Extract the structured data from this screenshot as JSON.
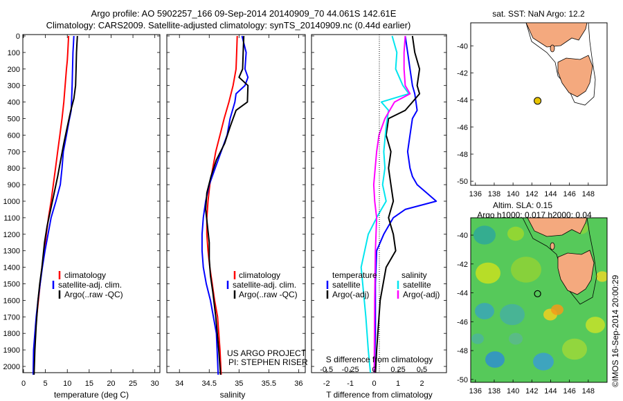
{
  "header": {
    "line1": "Argo profile: AO 5902257_166 09-Sep-2014 20140909_70 44.061S 142.61E",
    "line2": "Climatology: CARS2009. Satellite-adjusted climatology: synTS_20140909.nc (0.44d earlier)"
  },
  "colors": {
    "climatology": "#ff0000",
    "satellite": "#0000ff",
    "argo": "#000000",
    "sat_salinity": "#00e5ee",
    "argo_adj_salinity": "#ff00ff",
    "land": "#f4a97e",
    "float_marker": "#e8c400"
  },
  "credits": {
    "project": "US ARGO PROJECT",
    "pi": "PI: STEPHEN RISER",
    "timestamp": "©IMOS 16-Sep-2014 20:00:29"
  },
  "chart_data": [
    {
      "type": "line",
      "name": "temperature-profile",
      "xlabel": "temperature (deg C)",
      "ylabel": "",
      "xlim": [
        0,
        31
      ],
      "ylim": [
        2050,
        0
      ],
      "xticks": [
        0,
        5,
        10,
        15,
        20,
        25,
        30
      ],
      "yticks": [
        0,
        100,
        200,
        300,
        400,
        500,
        600,
        700,
        800,
        900,
        1000,
        1100,
        1200,
        1300,
        1400,
        1500,
        1600,
        1700,
        1800,
        1900,
        2000
      ],
      "legend": [
        "climatology",
        "satellite-adj. clim.",
        "Argo(..raw -QC)"
      ],
      "legend_position": "lower-right",
      "series": [
        {
          "name": "climatology",
          "color": "#ff0000",
          "x": [
            10.3,
            10.2,
            10.1,
            10.0,
            9.8,
            9.5,
            9.2,
            8.8,
            8.3,
            7.8,
            7.3,
            6.8,
            6.3,
            5.7,
            5.2,
            4.7,
            4.2,
            3.8,
            3.4,
            3.0,
            2.7,
            2.5,
            2.3
          ],
          "y": [
            0,
            50,
            100,
            150,
            200,
            300,
            400,
            500,
            600,
            700,
            800,
            900,
            1000,
            1100,
            1200,
            1300,
            1400,
            1500,
            1600,
            1700,
            1800,
            1900,
            2050
          ]
        },
        {
          "name": "satellite-adj. clim.",
          "color": "#0000ff",
          "x": [
            11.5,
            11.4,
            11.3,
            11.2,
            11.1,
            11.0,
            10.9,
            10.5,
            9.8,
            9.1,
            8.8,
            8.4,
            7.4,
            6.3,
            5.6,
            4.9,
            4.3,
            3.8,
            3.3,
            2.9,
            2.6,
            2.3,
            2.2
          ],
          "y": [
            0,
            50,
            100,
            200,
            300,
            380,
            450,
            500,
            600,
            700,
            800,
            900,
            1000,
            1100,
            1200,
            1300,
            1400,
            1500,
            1600,
            1700,
            1800,
            1900,
            2050
          ]
        },
        {
          "name": "Argo(..raw -QC)",
          "color": "#000000",
          "x": [
            12.3,
            12.2,
            12.1,
            12.0,
            11.9,
            11.5,
            10.8,
            10.0,
            9.2,
            8.5,
            7.8,
            7.0,
            6.2,
            5.4,
            4.8,
            4.2,
            3.7,
            3.3,
            2.9,
            2.6,
            2.4
          ],
          "y": [
            0,
            50,
            100,
            200,
            300,
            380,
            450,
            550,
            650,
            750,
            850,
            950,
            1050,
            1150,
            1250,
            1400,
            1500,
            1600,
            1750,
            1900,
            2050
          ]
        }
      ]
    },
    {
      "type": "line",
      "name": "salinity-profile",
      "xlabel": "salinity",
      "ylabel": "",
      "xlim": [
        33.8,
        36.1
      ],
      "ylim": [
        2050,
        0
      ],
      "xticks": [
        34,
        34.5,
        35,
        35.5,
        36
      ],
      "legend": [
        "climatology",
        "satellite-adj. clim.",
        "Argo(..raw -QC)"
      ],
      "legend_position": "lower-right",
      "series": [
        {
          "name": "climatology",
          "color": "#ff0000",
          "x": [
            34.97,
            34.96,
            34.95,
            34.9,
            34.83,
            34.75,
            34.68,
            34.61,
            34.56,
            34.51,
            34.48,
            34.46,
            34.46,
            34.48,
            34.51,
            34.55,
            34.59,
            34.64,
            34.68,
            34.7
          ],
          "y": [
            0,
            100,
            200,
            300,
            400,
            500,
            600,
            700,
            800,
            900,
            1000,
            1100,
            1200,
            1300,
            1400,
            1500,
            1600,
            1700,
            1900,
            2050
          ]
        },
        {
          "name": "satellite-adj. clim.",
          "color": "#0000ff",
          "x": [
            35.05,
            35.12,
            35.1,
            35.15,
            35.1,
            34.95,
            34.93,
            34.85,
            34.8,
            34.7,
            34.6,
            34.5,
            34.44,
            34.4,
            34.38,
            34.38,
            34.4,
            34.45,
            34.52,
            34.62,
            34.65
          ],
          "y": [
            0,
            100,
            200,
            250,
            300,
            350,
            400,
            500,
            600,
            700,
            800,
            900,
            1000,
            1100,
            1200,
            1300,
            1400,
            1500,
            1600,
            1800,
            2050
          ]
        },
        {
          "name": "Argo(..raw -QC)",
          "color": "#000000",
          "x": [
            35.08,
            35.07,
            35.06,
            35.0,
            35.15,
            35.14,
            34.95,
            34.85,
            34.76,
            34.62,
            34.53,
            34.46,
            34.44,
            34.47,
            34.5,
            34.5,
            34.52,
            34.56,
            34.61,
            34.66,
            34.69
          ],
          "y": [
            0,
            100,
            200,
            250,
            300,
            400,
            450,
            550,
            650,
            750,
            850,
            950,
            1050,
            1150,
            1250,
            1350,
            1450,
            1550,
            1700,
            1900,
            2050
          ]
        }
      ]
    },
    {
      "type": "line",
      "name": "difference-from-climatology",
      "xlabel": "T difference from climatology",
      "xlabel_top": "S difference from climatology",
      "ylabel": "",
      "xlim": [
        -2.6,
        3.0
      ],
      "ylim": [
        2050,
        0
      ],
      "xticks": [
        -2,
        -1,
        0,
        1,
        2
      ],
      "xticks_top": [
        -0.5,
        -0.25,
        0,
        0.25,
        0.5
      ],
      "legend_titles": [
        "temperature",
        "salinity"
      ],
      "legend": [
        "satellite",
        "Argo(-adj)",
        "satellite",
        "Argo(-adj)"
      ],
      "series": [
        {
          "name": "satellite",
          "color": "#0000ff",
          "x": [
            1.3,
            1.4,
            1.5,
            1.6,
            1.7,
            1.75,
            1.8,
            1.6,
            1.5,
            1.4,
            1.5,
            1.6,
            1.8,
            2.2,
            2.6,
            1.3,
            0.8,
            0.4,
            0.1,
            0.05,
            0.05,
            0.0
          ],
          "y": [
            0,
            100,
            200,
            300,
            350,
            400,
            450,
            500,
            600,
            700,
            800,
            850,
            900,
            950,
            1000,
            1050,
            1100,
            1200,
            1300,
            1500,
            1800,
            2050
          ]
        },
        {
          "name": "Argo(-adj)",
          "color": "#000000",
          "x": [
            1.6,
            1.7,
            1.9,
            1.8,
            1.9,
            1.6,
            1.3,
            0.6,
            0.5,
            0.7,
            0.6,
            0.7,
            0.8,
            0.7,
            0.6,
            0.7,
            0.8,
            0.9,
            0.5,
            0.25,
            0.1,
            0.05
          ],
          "y": [
            0,
            100,
            200,
            300,
            350,
            400,
            450,
            500,
            600,
            700,
            800,
            900,
            1000,
            1050,
            1100,
            1150,
            1200,
            1300,
            1400,
            1600,
            1900,
            2050
          ]
        },
        {
          "name": "satellite",
          "color": "#00e5ee",
          "x": [
            0.75,
            0.95,
            0.9,
            1.2,
            1.45,
            0.3,
            0.6,
            0.5,
            0.4,
            0.45,
            0.35,
            0.5,
            0.3,
            0.1,
            -0.25,
            -0.55,
            -0.45,
            -0.35,
            -0.25,
            -0.15
          ],
          "y": [
            0,
            100,
            200,
            300,
            350,
            400,
            450,
            550,
            700,
            800,
            900,
            1000,
            1050,
            1100,
            1200,
            1400,
            1550,
            1700,
            1900,
            2050
          ]
        },
        {
          "name": "Argo(-adj)",
          "color": "#ff00ff",
          "x": [
            1.3,
            1.25,
            1.25,
            1.3,
            1.5,
            0.85,
            0.45,
            0.2,
            0.1,
            -0.02,
            0.02,
            0.1,
            0.05,
            0.02,
            0.0
          ],
          "y": [
            0,
            100,
            200,
            300,
            350,
            400,
            500,
            600,
            700,
            900,
            1000,
            1100,
            1300,
            1600,
            2050
          ]
        }
      ]
    },
    {
      "type": "scatter",
      "name": "sst-map",
      "title": "sat. SST: NaN Argo: 12.2",
      "xlim": [
        135.5,
        150
      ],
      "ylim": [
        -50.3,
        -38.3
      ],
      "xticks": [
        136,
        138,
        140,
        142,
        144,
        146,
        148
      ],
      "yticks": [
        -40,
        -42,
        -44,
        -46,
        -48,
        -50
      ],
      "float": {
        "lon": 142.61,
        "lat": -44.061
      }
    },
    {
      "type": "heatmap",
      "name": "sla-map",
      "title": "Altim. SLA: 0.15",
      "subtitle": "Argo h1000: 0.017 h2000: 0.04",
      "xlim": [
        135.5,
        150
      ],
      "ylim": [
        -50.2,
        -38.8
      ],
      "xticks": [
        136,
        138,
        140,
        142,
        144,
        146,
        148
      ],
      "yticks": [
        -40,
        -42,
        -44,
        -46,
        -48,
        -50
      ],
      "float": {
        "lon": 142.61,
        "lat": -44.061
      }
    }
  ]
}
